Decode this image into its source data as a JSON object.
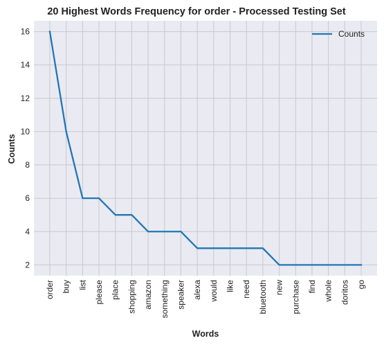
{
  "chart_data": {
    "type": "line",
    "title": "20 Highest Words Frequency for order - Processed Testing Set",
    "xlabel": "Words",
    "ylabel": "Counts",
    "categories": [
      "order",
      "buy",
      "list",
      "please",
      "place",
      "shopping",
      "amazon",
      "something",
      "speaker",
      "alexa",
      "would",
      "like",
      "need",
      "bluetooth",
      "new",
      "purchase",
      "find",
      "whole",
      "doritos",
      "go"
    ],
    "series": [
      {
        "name": "Counts",
        "values": [
          16,
          10,
          6,
          6,
          5,
          5,
          4,
          4,
          4,
          3,
          3,
          3,
          3,
          3,
          2,
          2,
          2,
          2,
          2,
          2
        ]
      }
    ],
    "ylim": [
      1.35,
      16.65
    ],
    "yticks": [
      2,
      4,
      6,
      8,
      10,
      12,
      14,
      16
    ],
    "grid": true,
    "legend_position": "top-right",
    "colors": {
      "line": "#1f77b4",
      "plot_background": "#eaeaf2",
      "grid": "#c8c8cc"
    }
  }
}
